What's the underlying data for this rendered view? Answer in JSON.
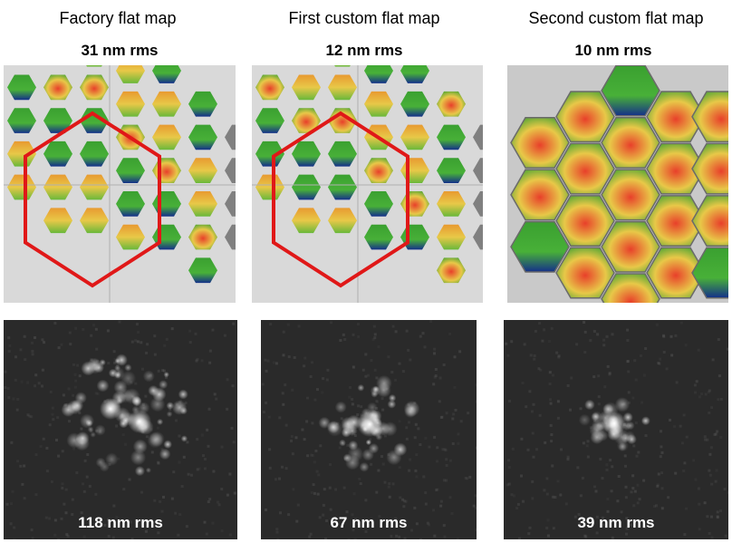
{
  "columns": [
    {
      "title": "Factory flat map",
      "surface_rms": "31 nm rms",
      "psf_rms": "118 nm rms"
    },
    {
      "title": "First custom flat map",
      "surface_rms": "12 nm rms",
      "psf_rms": "67 nm rms"
    },
    {
      "title": "Second custom flat map",
      "surface_rms": "10 nm rms",
      "psf_rms": "39 nm rms"
    }
  ],
  "colors": {
    "panel_bg": "#d9d9d9",
    "outline": "#e01818",
    "inactive_segment": "#808080",
    "warm": "#e8402a",
    "mid": "#e8c848",
    "cool": "#3aa030",
    "deep": "#14308a"
  }
}
